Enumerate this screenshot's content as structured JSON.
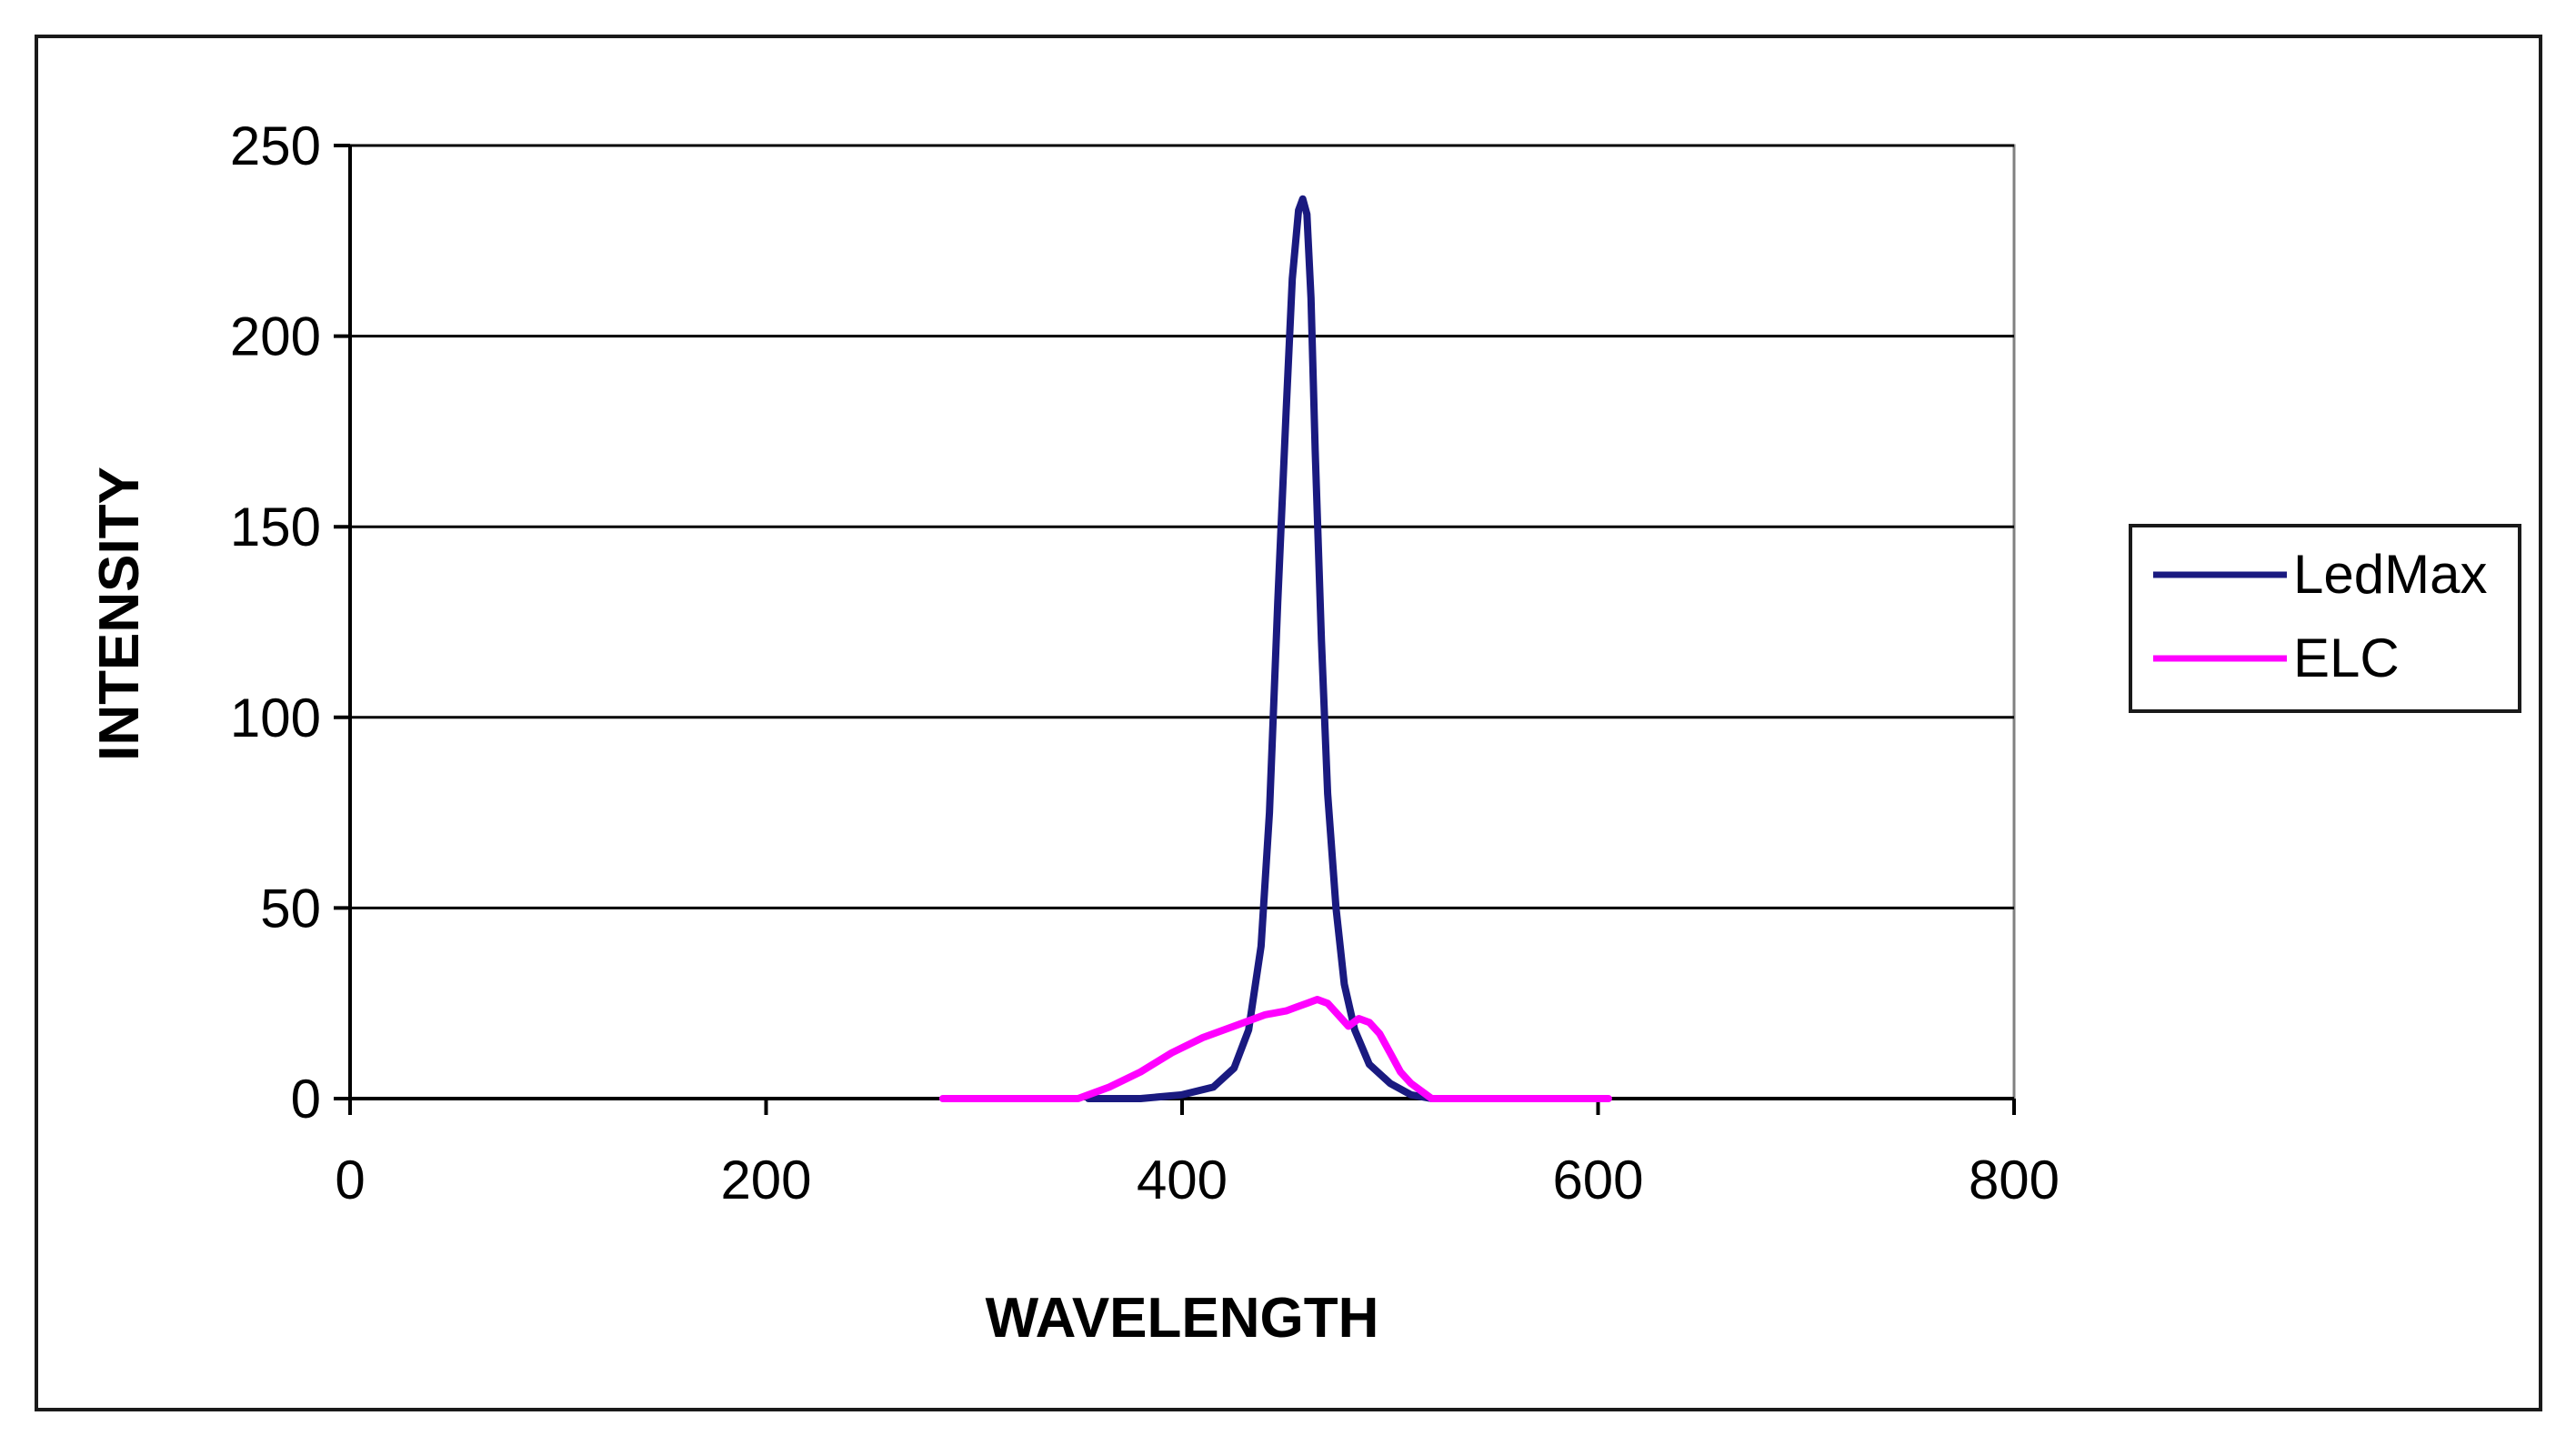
{
  "chart_data": {
    "type": "line",
    "title": "",
    "xlabel": "WAVELENGTH",
    "ylabel": "INTENSITY",
    "xlim": [
      0,
      800
    ],
    "ylim": [
      0,
      250
    ],
    "xticks": [
      0,
      200,
      400,
      600,
      800
    ],
    "yticks": [
      0,
      50,
      100,
      150,
      200,
      250
    ],
    "grid": "horizontal",
    "legend_position": "right",
    "series": [
      {
        "name": "LedMax",
        "color": "#1a1a80",
        "x": [
          355,
          380,
          400,
          415,
          425,
          432,
          438,
          442,
          446,
          450,
          453,
          456,
          458,
          460,
          462,
          464,
          467,
          470,
          474,
          478,
          483,
          490,
          500,
          510,
          520
        ],
        "y": [
          0,
          0,
          1,
          3,
          8,
          18,
          40,
          75,
          130,
          180,
          215,
          233,
          236,
          232,
          210,
          170,
          120,
          80,
          50,
          30,
          18,
          9,
          4,
          1,
          0
        ]
      },
      {
        "name": "ELC",
        "color": "#ff00ff",
        "x": [
          285,
          320,
          350,
          365,
          380,
          395,
          410,
          425,
          440,
          450,
          455,
          460,
          465,
          470,
          475,
          480,
          485,
          490,
          495,
          500,
          505,
          510,
          515,
          520,
          540,
          580,
          605
        ],
        "y": [
          0,
          0,
          0,
          3,
          7,
          12,
          16,
          19,
          22,
          23,
          24,
          25,
          26,
          25,
          22,
          19,
          21,
          20,
          17,
          12,
          7,
          4,
          2,
          0,
          0,
          0,
          0
        ]
      }
    ]
  }
}
